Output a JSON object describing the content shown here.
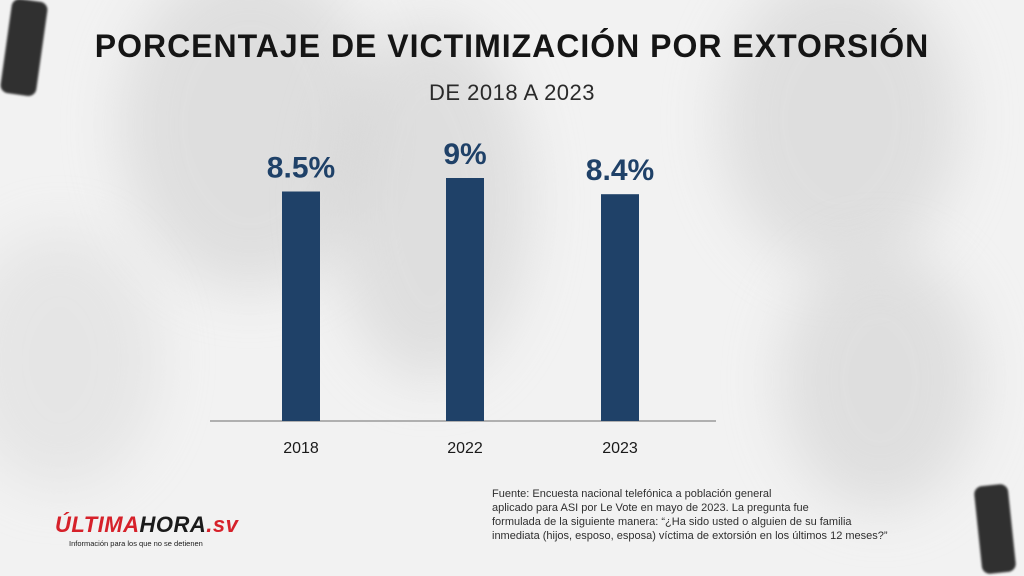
{
  "title": "PORCENTAJE DE VICTIMIZACIÓN POR EXTORSIÓN",
  "subtitle": "DE 2018 A 2023",
  "chart_data": {
    "type": "bar",
    "categories": [
      "2018",
      "2022",
      "2023"
    ],
    "values": [
      8.5,
      9,
      8.4
    ],
    "data_labels": [
      "8.5%",
      "9%",
      "8.4%"
    ],
    "title": "PORCENTAJE DE VICTIMIZACIÓN POR EXTORSIÓN",
    "subtitle": "DE 2018 A 2023",
    "xlabel": "",
    "ylabel": "",
    "ylim": [
      0,
      10
    ],
    "grid": false,
    "bar_color": "#1f4168"
  },
  "source": {
    "line1": "Fuente: Encuesta nacional telefónica a población general",
    "line2": "aplicado para ASI por Le Vote en mayo de 2023. La pregunta fue",
    "line3": "formulada de la siguiente manera: “¿Ha sido usted o alguien de su familia",
    "line4": "inmediata (hijos, esposo, esposa) víctima de extorsión en los últimos 12 meses?”"
  },
  "logo": {
    "part1": "ÚLTIMA",
    "part2": "HORA",
    "part3": ".sv",
    "tagline": "Información para los que no se detienen"
  },
  "colors": {
    "accent_red": "#d6212a",
    "bar": "#1f4168",
    "text_dark": "#151515"
  }
}
